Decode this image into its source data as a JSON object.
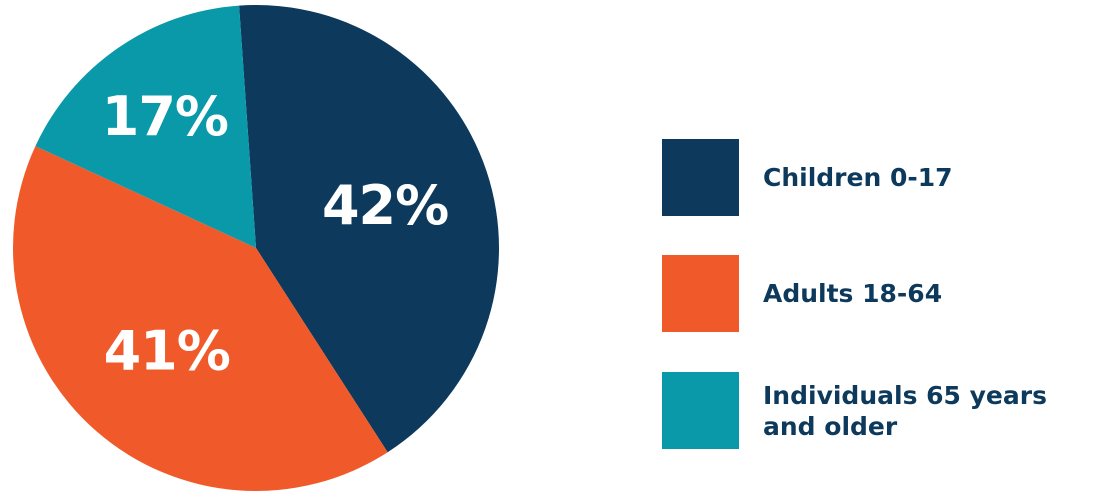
{
  "chart_data": {
    "type": "pie",
    "title": "",
    "slices": [
      {
        "label": "Children 0-17",
        "value": 42,
        "display": "42%",
        "color": "#0d3a5c"
      },
      {
        "label": "Adults 18-64",
        "value": 41,
        "display": "41%",
        "color": "#f05a2a"
      },
      {
        "label": "Individuals 65 years and older",
        "value": 17,
        "display": "17%",
        "color": "#0999a8"
      }
    ],
    "legend_position": "right"
  }
}
